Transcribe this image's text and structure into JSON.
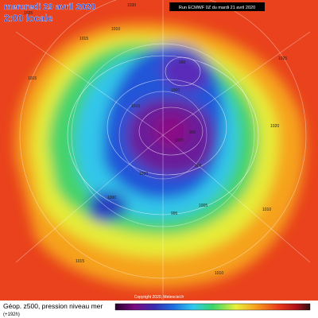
{
  "header": {
    "date": "mercredi 29 avril 2020",
    "time": "2:00 locale",
    "run": "Run ECMWF 0Z du mardi 21 avril 2020"
  },
  "footer": {
    "title": "Géop. z500, pression niveau mer",
    "lead": "(+192h)",
    "copyright": "Copyright 2020, Meteociel.fr"
  },
  "isobar_labels": [
    "1025",
    "1030",
    "1015",
    "1010",
    "1015",
    "1000",
    "990",
    "1005",
    "995",
    "990",
    "1015",
    "1020",
    "1000",
    "995",
    "1005",
    "1010",
    "1020",
    "1025",
    "1015",
    "1010"
  ]
}
